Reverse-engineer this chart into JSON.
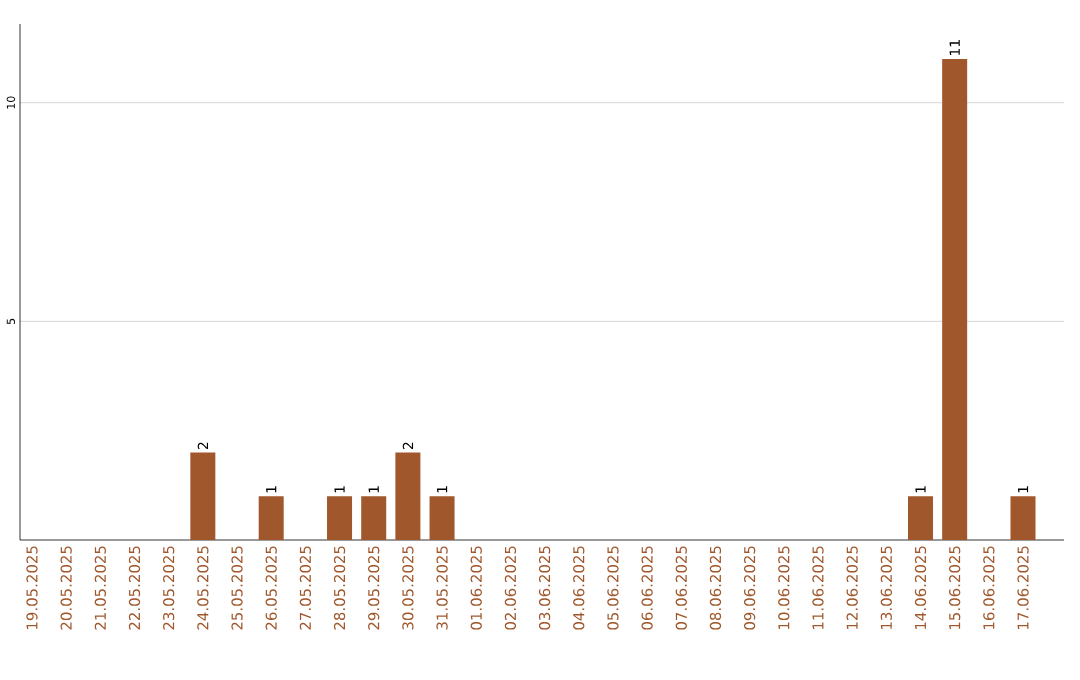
{
  "chart_data": {
    "type": "bar",
    "color": "#a0572b",
    "grid": "y",
    "ylim": [
      0,
      11.8
    ],
    "yticks": [
      5,
      10
    ],
    "categories": [
      "19.05.2025",
      "20.05.2025",
      "21.05.2025",
      "22.05.2025",
      "23.05.2025",
      "24.05.2025",
      "25.05.2025",
      "26.05.2025",
      "27.05.2025",
      "28.05.2025",
      "29.05.2025",
      "30.05.2025",
      "31.05.2025",
      "01.06.2025",
      "02.06.2025",
      "03.06.2025",
      "04.06.2025",
      "05.06.2025",
      "06.06.2025",
      "07.06.2025",
      "08.06.2025",
      "09.06.2025",
      "10.06.2025",
      "11.06.2025",
      "12.06.2025",
      "13.06.2025",
      "14.06.2025",
      "15.06.2025",
      "16.06.2025",
      "17.06.2025"
    ],
    "values": [
      0,
      0,
      0,
      0,
      0,
      2,
      0,
      1,
      0,
      1,
      1,
      2,
      1,
      0,
      0,
      0,
      0,
      0,
      0,
      0,
      0,
      0,
      0,
      0,
      0,
      0,
      1,
      11,
      0,
      1
    ],
    "value_labels": [
      null,
      null,
      null,
      null,
      null,
      "2",
      null,
      "1",
      null,
      "1",
      "1",
      "2",
      "1",
      null,
      null,
      null,
      null,
      null,
      null,
      null,
      null,
      null,
      null,
      null,
      null,
      null,
      "1",
      "11",
      null,
      "1"
    ]
  }
}
